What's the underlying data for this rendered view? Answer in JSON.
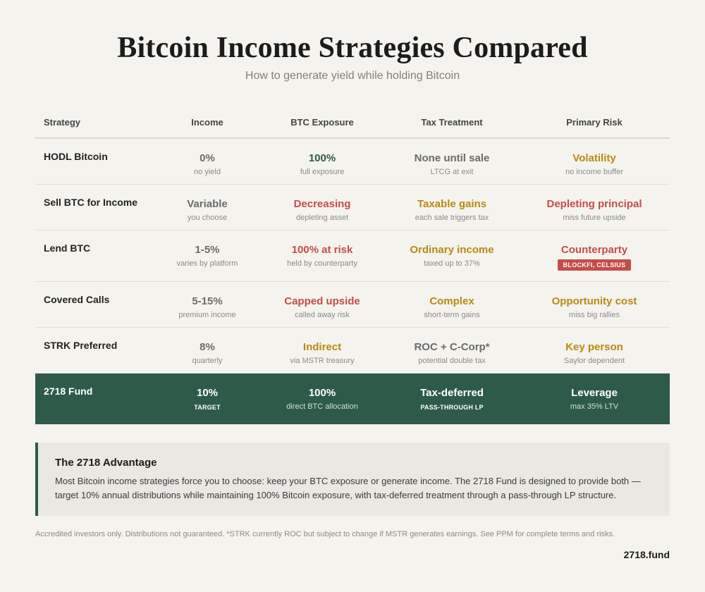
{
  "header": {
    "title": "Bitcoin Income Strategies Compared",
    "subtitle": "How to generate yield while holding Bitcoin"
  },
  "colors": {
    "accent_green": "#2e5a4a",
    "risk_red": "#c44d48",
    "caution_gold": "#b98a12",
    "neutral_gray": "#6b6b6b"
  },
  "table": {
    "columns": [
      "Strategy",
      "Income",
      "BTC Exposure",
      "Tax Treatment",
      "Primary Risk"
    ],
    "rows": [
      {
        "strategy": "HODL Bitcoin",
        "income": {
          "main": "0%",
          "sub": "no yield"
        },
        "exposure": {
          "main": "100%",
          "sub": "full exposure"
        },
        "tax": {
          "main": "None until sale",
          "sub": "LTCG at exit"
        },
        "risk": {
          "main": "Volatility",
          "sub": "no income buffer"
        }
      },
      {
        "strategy": "Sell BTC for Income",
        "income": {
          "main": "Variable",
          "sub": "you choose"
        },
        "exposure": {
          "main": "Decreasing",
          "sub": "depleting asset"
        },
        "tax": {
          "main": "Taxable gains",
          "sub": "each sale triggers tax"
        },
        "risk": {
          "main": "Depleting principal",
          "sub": "miss future upside"
        }
      },
      {
        "strategy": "Lend BTC",
        "income": {
          "main": "1-5%",
          "sub": "varies by platform"
        },
        "exposure": {
          "main": "100% at risk",
          "sub": "held by counterparty"
        },
        "tax": {
          "main": "Ordinary income",
          "sub": "taxed up to 37%"
        },
        "risk": {
          "main": "Counterparty",
          "badge": "BLOCKFI, CELSIUS"
        }
      },
      {
        "strategy": "Covered Calls",
        "income": {
          "main": "5-15%",
          "sub": "premium income"
        },
        "exposure": {
          "main": "Capped upside",
          "sub": "called away risk"
        },
        "tax": {
          "main": "Complex",
          "sub": "short-term gains"
        },
        "risk": {
          "main": "Opportunity cost",
          "sub": "miss big rallies"
        }
      },
      {
        "strategy": "STRK Preferred",
        "income": {
          "main": "8%",
          "sub": "quarterly"
        },
        "exposure": {
          "main": "Indirect",
          "sub": "via MSTR treasury"
        },
        "tax": {
          "main": "ROC + C-Corp*",
          "sub": "potential double tax"
        },
        "risk": {
          "main": "Key person",
          "sub": "Saylor dependent"
        }
      }
    ],
    "highlight": {
      "strategy": "2718 Fund",
      "income": {
        "main": "10%",
        "tag": "TARGET"
      },
      "exposure": {
        "main": "100%",
        "sub": "direct BTC allocation"
      },
      "tax": {
        "main": "Tax-deferred",
        "tag": "PASS-THROUGH LP"
      },
      "risk": {
        "main": "Leverage",
        "sub": "max 35% LTV"
      }
    }
  },
  "advantage": {
    "heading": "The 2718 Advantage",
    "body": "Most Bitcoin income strategies force you to choose: keep your BTC exposure or generate income. The 2718 Fund is designed to provide both — target 10% annual distributions while maintaining 100% Bitcoin exposure, with tax-deferred treatment through a pass-through LP structure."
  },
  "footer": {
    "disclaimer": "Accredited investors only. Distributions not guaranteed. *STRK currently ROC but subject to change if MSTR generates earnings. See PPM for complete terms and risks.",
    "site": "2718.fund"
  }
}
